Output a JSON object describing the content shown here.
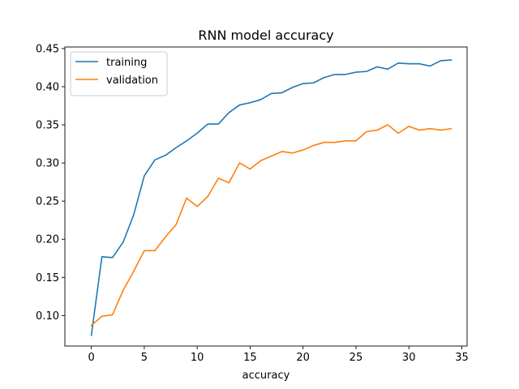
{
  "chart_data": {
    "type": "line",
    "title": "RNN model accuracy",
    "xlabel": "accuracy",
    "ylabel": "",
    "xlim": [
      -2.5,
      35.5
    ],
    "ylim": [
      0.06,
      0.452
    ],
    "xticks": [
      0,
      5,
      10,
      15,
      20,
      25,
      30,
      35
    ],
    "yticks": [
      0.1,
      0.15,
      0.2,
      0.25,
      0.3,
      0.35,
      0.4,
      0.45
    ],
    "ytick_labels": [
      "0.10",
      "0.15",
      "0.20",
      "0.25",
      "0.30",
      "0.35",
      "0.40",
      "0.45"
    ],
    "grid": false,
    "legend": "top-left",
    "x": [
      0,
      1,
      2,
      3,
      4,
      5,
      6,
      7,
      8,
      9,
      10,
      11,
      12,
      13,
      14,
      15,
      16,
      17,
      18,
      19,
      20,
      21,
      22,
      23,
      24,
      25,
      26,
      27,
      28,
      29,
      30,
      31,
      32,
      33,
      34
    ],
    "series": [
      {
        "name": "training",
        "color": "#1f77b4",
        "values": [
          0.074,
          0.177,
          0.176,
          0.196,
          0.232,
          0.283,
          0.304,
          0.31,
          0.32,
          0.329,
          0.339,
          0.351,
          0.351,
          0.366,
          0.376,
          0.379,
          0.383,
          0.391,
          0.392,
          0.399,
          0.404,
          0.405,
          0.412,
          0.416,
          0.416,
          0.419,
          0.42,
          0.426,
          0.423,
          0.431,
          0.43,
          0.43,
          0.427,
          0.434,
          0.435
        ]
      },
      {
        "name": "validation",
        "color": "#ff7f0e",
        "values": [
          0.087,
          0.099,
          0.101,
          0.133,
          0.158,
          0.185,
          0.185,
          0.203,
          0.219,
          0.254,
          0.243,
          0.256,
          0.28,
          0.274,
          0.3,
          0.292,
          0.303,
          0.309,
          0.315,
          0.313,
          0.317,
          0.323,
          0.327,
          0.327,
          0.329,
          0.329,
          0.341,
          0.343,
          0.35,
          0.339,
          0.348,
          0.343,
          0.345,
          0.343,
          0.345
        ]
      }
    ]
  }
}
